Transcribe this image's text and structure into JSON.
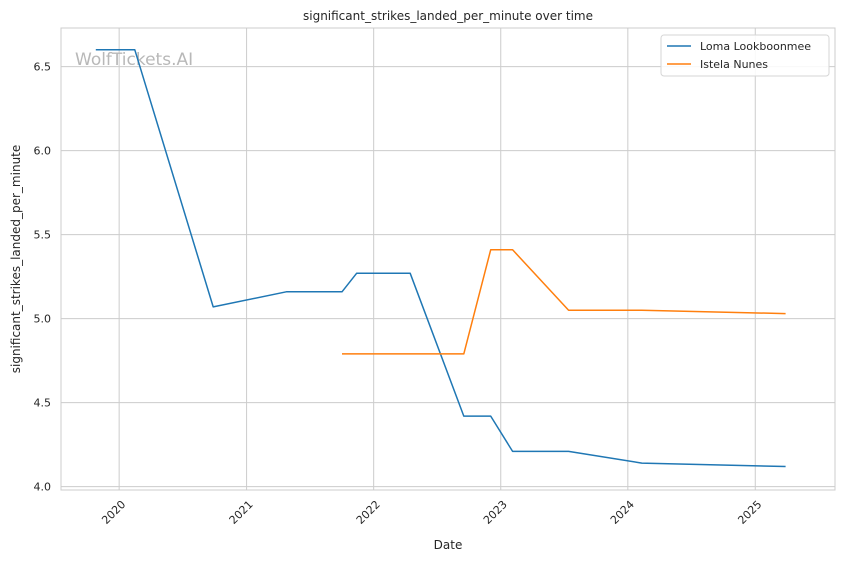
{
  "chart_data": {
    "type": "line",
    "title": "significant_strikes_landed_per_minute over time",
    "xlabel": "Date",
    "ylabel": "significant_strikes_landed_per_minute",
    "watermark": "WolfTickets.AI",
    "xlim": [
      "2019-07-18",
      "2025-08-18"
    ],
    "ylim": [
      3.98,
      6.73
    ],
    "x_ticks": [
      "2020-01-01",
      "2021-01-01",
      "2022-01-01",
      "2023-01-01",
      "2024-01-01",
      "2025-01-01"
    ],
    "x_tick_labels": [
      "2020",
      "2021",
      "2022",
      "2023",
      "2024",
      "2025"
    ],
    "y_ticks": [
      4.0,
      4.5,
      5.0,
      5.5,
      6.0,
      6.5
    ],
    "y_tick_labels": [
      "4.0",
      "4.5",
      "5.0",
      "5.5",
      "6.0",
      "6.5"
    ],
    "grid": true,
    "legend_position": "top-right",
    "series": [
      {
        "name": "Loma Lookboonmee",
        "color": "#1f77b4",
        "x": [
          "2019-10-26",
          "2020-02-15",
          "2020-09-27",
          "2021-04-25",
          "2021-10-02",
          "2021-11-13",
          "2022-04-16",
          "2022-09-17",
          "2022-12-03",
          "2023-02-04",
          "2023-07-15",
          "2024-02-10",
          "2025-03-29"
        ],
        "y": [
          6.6,
          6.6,
          5.07,
          5.16,
          5.16,
          5.27,
          5.27,
          4.42,
          4.42,
          4.21,
          4.21,
          4.14,
          4.12
        ]
      },
      {
        "name": "Istela Nunes",
        "color": "#ff7f0e",
        "x": [
          "2021-10-02",
          "2022-09-17",
          "2022-12-03",
          "2023-02-04",
          "2023-07-15",
          "2024-02-10",
          "2025-03-29"
        ],
        "y": [
          4.79,
          4.79,
          5.41,
          5.41,
          5.05,
          5.05,
          5.03
        ]
      }
    ]
  }
}
